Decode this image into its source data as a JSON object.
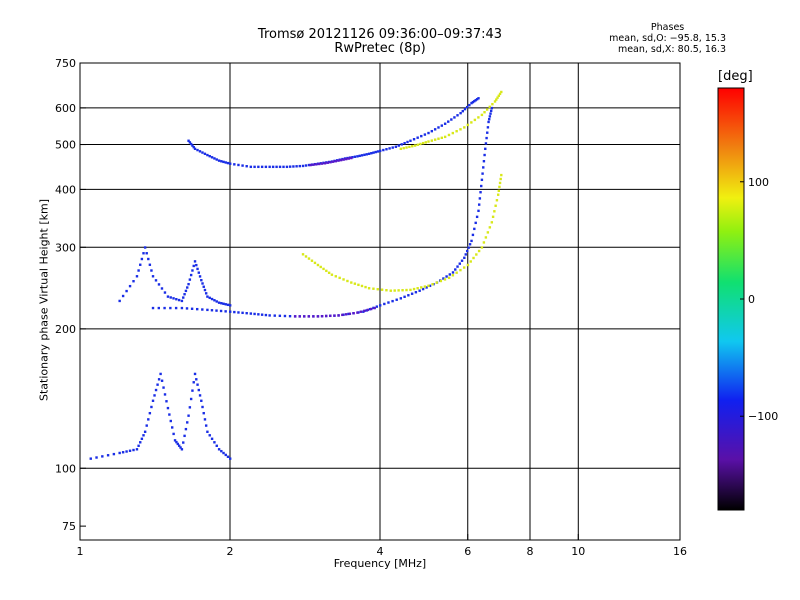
{
  "header": {
    "title_line1": "Tromsø 20121126 09:36:00–09:37:43",
    "title_line2": "RwPretec (8p)",
    "phases_title": "Phases",
    "phases_o": "mean, sd,O: −95.8, 15.3",
    "phases_x": "mean, sd,X:  80.5, 16.3"
  },
  "colorbar": {
    "unit": "[deg]",
    "range": [
      -180,
      180
    ],
    "ticks": [
      "100",
      "0",
      "−100"
    ],
    "tick_values": [
      100,
      0,
      -100
    ]
  },
  "chart_data": {
    "type": "scatter",
    "xlabel": "Frequency [MHz]",
    "ylabel": "Stationary phase Virtual Height [km]",
    "x_scale": "log",
    "y_scale": "log",
    "xlim": [
      1,
      16
    ],
    "ylim": [
      70,
      750
    ],
    "x_ticks": [
      {
        "v": 1,
        "l": "1"
      },
      {
        "v": 2,
        "l": "2"
      },
      {
        "v": 4,
        "l": "4"
      },
      {
        "v": 6,
        "l": "6"
      },
      {
        "v": 8,
        "l": "8"
      },
      {
        "v": 10,
        "l": "10"
      },
      {
        "v": 16,
        "l": "16"
      }
    ],
    "y_ticks": [
      {
        "v": 75,
        "l": "75"
      },
      {
        "v": 100,
        "l": "100"
      },
      {
        "v": 200,
        "l": "200"
      },
      {
        "v": 300,
        "l": "300"
      },
      {
        "v": 400,
        "l": "400"
      },
      {
        "v": 500,
        "l": "500"
      },
      {
        "v": 600,
        "l": "600"
      },
      {
        "v": 750,
        "l": "750"
      }
    ],
    "grid_x": [
      2,
      4,
      6,
      8,
      10
    ],
    "grid_y": [
      100,
      200,
      300,
      400,
      500,
      600
    ],
    "series": [
      {
        "trace": "F2-O",
        "color": "#1a2ee6",
        "points": [
          [
            1.65,
            510
          ],
          [
            1.7,
            490
          ],
          [
            1.8,
            475
          ],
          [
            1.9,
            462
          ],
          [
            2.0,
            455
          ],
          [
            2.2,
            448
          ],
          [
            2.4,
            448
          ],
          [
            2.6,
            448
          ],
          [
            2.8,
            450
          ],
          [
            3.0,
            455
          ],
          [
            3.2,
            460
          ],
          [
            3.4,
            467
          ],
          [
            3.6,
            472
          ],
          [
            3.8,
            478
          ],
          [
            4.0,
            485
          ],
          [
            4.3,
            495
          ],
          [
            4.6,
            510
          ],
          [
            5.0,
            530
          ],
          [
            5.4,
            555
          ],
          [
            5.8,
            585
          ],
          [
            6.1,
            615
          ],
          [
            6.3,
            630
          ]
        ]
      },
      {
        "trace": "F2-O violet",
        "color": "#5a18c8",
        "points": [
          [
            2.9,
            452
          ],
          [
            3.1,
            456
          ],
          [
            3.3,
            462
          ],
          [
            3.5,
            468
          ]
        ]
      },
      {
        "trace": "F2-X",
        "color": "#d8e81a",
        "points": [
          [
            4.4,
            490
          ],
          [
            4.7,
            498
          ],
          [
            5.0,
            508
          ],
          [
            5.4,
            520
          ],
          [
            5.9,
            545
          ],
          [
            6.4,
            580
          ],
          [
            6.8,
            620
          ],
          [
            7.0,
            650
          ]
        ]
      },
      {
        "trace": "F1-O",
        "color": "#1a2ee6",
        "points": [
          [
            1.4,
            222
          ],
          [
            1.6,
            222
          ],
          [
            1.8,
            220
          ],
          [
            2.0,
            218
          ],
          [
            2.2,
            216
          ],
          [
            2.4,
            214
          ],
          [
            2.7,
            213
          ],
          [
            3.0,
            213
          ],
          [
            3.3,
            214
          ],
          [
            3.7,
            218
          ],
          [
            4.0,
            225
          ],
          [
            4.4,
            233
          ],
          [
            4.8,
            242
          ],
          [
            5.2,
            252
          ],
          [
            5.6,
            265
          ],
          [
            5.9,
            285
          ],
          [
            6.1,
            310
          ],
          [
            6.3,
            360
          ],
          [
            6.4,
            420
          ],
          [
            6.5,
            490
          ],
          [
            6.6,
            560
          ],
          [
            6.7,
            600
          ]
        ]
      },
      {
        "trace": "F1-O violet",
        "color": "#5a18c8",
        "points": [
          [
            2.7,
            213
          ],
          [
            3.0,
            213
          ],
          [
            3.3,
            214
          ],
          [
            3.6,
            217
          ],
          [
            3.9,
            222
          ]
        ]
      },
      {
        "trace": "F1-X",
        "color": "#d8e81a",
        "points": [
          [
            2.8,
            290
          ],
          [
            3.0,
            275
          ],
          [
            3.2,
            262
          ],
          [
            3.5,
            252
          ],
          [
            3.8,
            245
          ],
          [
            4.2,
            242
          ],
          [
            4.6,
            243
          ],
          [
            5.0,
            248
          ],
          [
            5.5,
            258
          ],
          [
            6.0,
            275
          ],
          [
            6.4,
            300
          ],
          [
            6.7,
            340
          ],
          [
            6.9,
            390
          ],
          [
            7.0,
            430
          ]
        ]
      },
      {
        "trace": "low-F",
        "color": "#1a2ee6",
        "points": [
          [
            1.2,
            230
          ],
          [
            1.3,
            260
          ],
          [
            1.35,
            300
          ],
          [
            1.4,
            260
          ],
          [
            1.5,
            235
          ],
          [
            1.6,
            230
          ],
          [
            1.65,
            250
          ],
          [
            1.7,
            280
          ],
          [
            1.75,
            255
          ],
          [
            1.8,
            235
          ],
          [
            1.9,
            228
          ],
          [
            2.0,
            225
          ]
        ]
      },
      {
        "trace": "E",
        "color": "#1a2ee6",
        "points": [
          [
            1.05,
            105
          ],
          [
            1.2,
            108
          ],
          [
            1.3,
            110
          ],
          [
            1.35,
            120
          ],
          [
            1.4,
            140
          ],
          [
            1.45,
            160
          ],
          [
            1.5,
            135
          ],
          [
            1.55,
            115
          ],
          [
            1.6,
            110
          ],
          [
            1.65,
            130
          ],
          [
            1.7,
            160
          ],
          [
            1.75,
            140
          ],
          [
            1.8,
            120
          ],
          [
            1.9,
            110
          ],
          [
            2.0,
            105
          ]
        ]
      }
    ]
  }
}
